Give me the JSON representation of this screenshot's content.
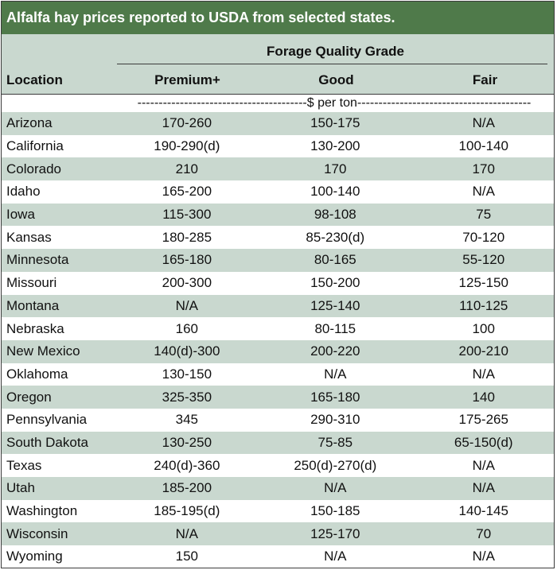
{
  "title": "Alfalfa hay prices reported to USDA from selected states.",
  "group_header": "Forage Quality Grade",
  "columns": [
    "Location",
    "Premium+",
    "Good",
    "Fair"
  ],
  "unit_row": "----------------------------------------$ per ton-----------------------------------------",
  "rows": [
    [
      "Arizona",
      "170-260",
      "150-175",
      "N/A"
    ],
    [
      "California",
      "190-290(d)",
      "130-200",
      "100-140"
    ],
    [
      "Colorado",
      "210",
      "170",
      "170"
    ],
    [
      "Idaho",
      "165-200",
      "100-140",
      "N/A"
    ],
    [
      "Iowa",
      "115-300",
      "98-108",
      "75"
    ],
    [
      "Kansas",
      "180-285",
      "85-230(d)",
      "70-120"
    ],
    [
      "Minnesota",
      "165-180",
      "80-165",
      "55-120"
    ],
    [
      "Missouri",
      "200-300",
      "150-200",
      "125-150"
    ],
    [
      "Montana",
      "N/A",
      "125-140",
      "110-125"
    ],
    [
      "Nebraska",
      "160",
      "80-115",
      "100"
    ],
    [
      "New Mexico",
      "140(d)-300",
      "200-220",
      "200-210"
    ],
    [
      "Oklahoma",
      "130-150",
      "N/A",
      "N/A"
    ],
    [
      "Oregon",
      "325-350",
      "165-180",
      "140"
    ],
    [
      "Pennsylvania",
      "345",
      "290-310",
      "175-265"
    ],
    [
      "South Dakota",
      "130-250",
      "75-85",
      "65-150(d)"
    ],
    [
      "Texas",
      "240(d)-360",
      "250(d)-270(d)",
      "N/A"
    ],
    [
      "Utah",
      "185-200",
      "N/A",
      "N/A"
    ],
    [
      "Washington",
      "185-195(d)",
      "150-185",
      "140-145"
    ],
    [
      "Wisconsin",
      "N/A",
      "125-170",
      "70"
    ],
    [
      "Wyoming",
      "150",
      "N/A",
      "N/A"
    ]
  ],
  "colors": {
    "title_bg": "#4f7a4a",
    "title_text": "#ffffff",
    "header_bg": "#c9d8cf",
    "shaded_row_bg": "#c9d8cf",
    "plain_row_bg": "#ffffff",
    "border": "#3b3b3b"
  }
}
